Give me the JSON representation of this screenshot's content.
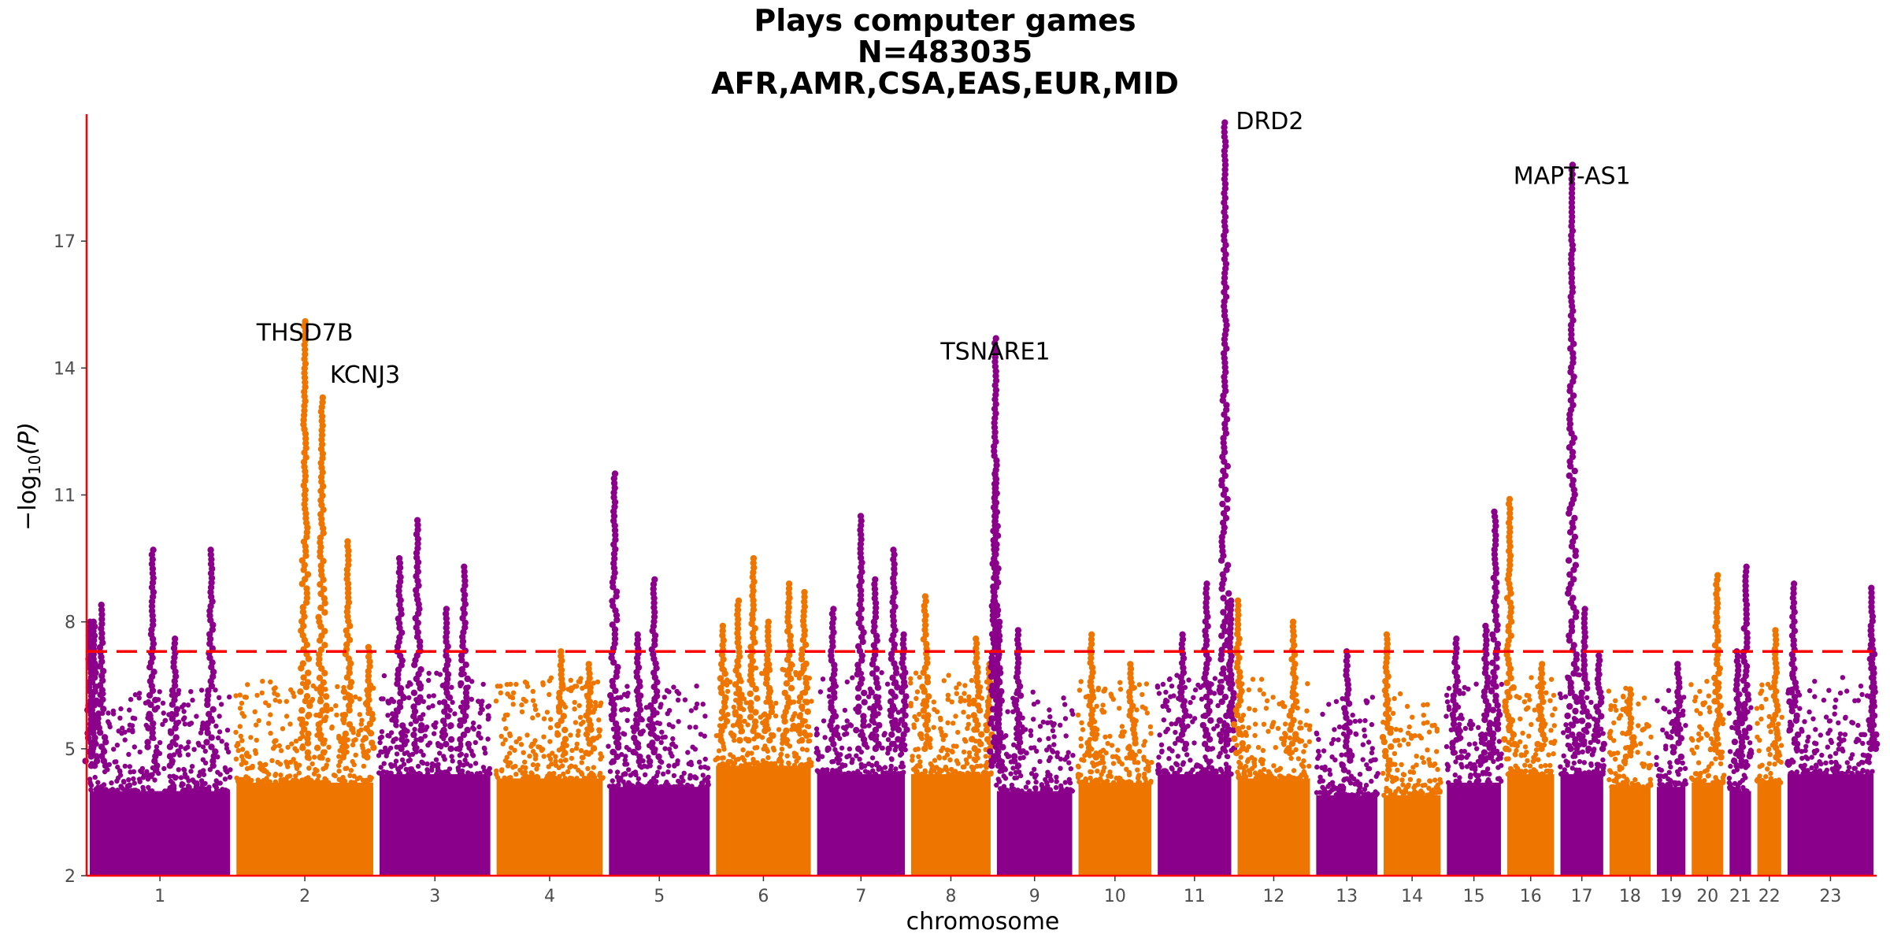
{
  "chart_data": {
    "type": "scatter",
    "title_lines": [
      "Plays computer games",
      "N=483035",
      "AFR,AMR,CSA,EAS,EUR,MID"
    ],
    "xlabel": "chromosome",
    "ylabel": "−log",
    "ylabel_sub": "10",
    "ylabel_var": "(P)",
    "ylim": [
      2,
      20
    ],
    "yticks": [
      2,
      5,
      8,
      11,
      14,
      17
    ],
    "significance_threshold": 7.3,
    "colors": {
      "odd": "#8B008B",
      "even": "#EE7600",
      "threshold": "#FF0000",
      "axis": "#FF0000"
    },
    "chromosomes": [
      {
        "label": "1",
        "length": 248,
        "base": 4.6,
        "peaks": [
          [
            0.02,
            8.0
          ],
          [
            0.05,
            8.0
          ],
          [
            0.1,
            8.4
          ],
          [
            0.45,
            9.7
          ],
          [
            0.6,
            7.6
          ],
          [
            0.85,
            9.7
          ]
        ]
      },
      {
        "label": "2",
        "length": 242,
        "base": 4.8,
        "peaks": [
          [
            0.5,
            15.1
          ],
          [
            0.62,
            13.3
          ],
          [
            0.8,
            9.9
          ],
          [
            0.95,
            7.4
          ]
        ]
      },
      {
        "label": "3",
        "length": 198,
        "base": 5.0,
        "peaks": [
          [
            0.2,
            9.5
          ],
          [
            0.35,
            10.4
          ],
          [
            0.6,
            8.3
          ],
          [
            0.75,
            9.3
          ]
        ]
      },
      {
        "label": "4",
        "length": 190,
        "base": 4.9,
        "peaks": [
          [
            0.6,
            7.3
          ],
          [
            0.85,
            7.0
          ]
        ]
      },
      {
        "label": "5",
        "length": 181,
        "base": 4.7,
        "peaks": [
          [
            0.08,
            11.5
          ],
          [
            0.45,
            9.0
          ],
          [
            0.3,
            7.7
          ]
        ]
      },
      {
        "label": "6",
        "length": 171,
        "base": 5.2,
        "peaks": [
          [
            0.1,
            7.9
          ],
          [
            0.25,
            8.5
          ],
          [
            0.4,
            9.5
          ],
          [
            0.55,
            8.0
          ],
          [
            0.75,
            8.9
          ],
          [
            0.9,
            8.7
          ]
        ]
      },
      {
        "label": "7",
        "length": 159,
        "base": 5.0,
        "peaks": [
          [
            0.2,
            8.3
          ],
          [
            0.5,
            10.5
          ],
          [
            0.65,
            9.0
          ],
          [
            0.85,
            9.7
          ],
          [
            0.95,
            7.7
          ]
        ]
      },
      {
        "label": "8",
        "length": 145,
        "base": 5.0,
        "peaks": [
          [
            0.2,
            8.6
          ],
          [
            0.8,
            7.6
          ],
          [
            0.95,
            7.0
          ]
        ]
      },
      {
        "label": "9",
        "length": 138,
        "base": 4.6,
        "peaks": [
          [
            0.02,
            14.7
          ],
          [
            0.02,
            11.5
          ],
          [
            0.06,
            8.0
          ],
          [
            0.3,
            7.8
          ]
        ]
      },
      {
        "label": "10",
        "length": 134,
        "base": 4.8,
        "peaks": [
          [
            0.2,
            7.7
          ],
          [
            0.7,
            7.0
          ]
        ]
      },
      {
        "label": "11",
        "length": 135,
        "base": 5.0,
        "peaks": [
          [
            0.35,
            7.7
          ],
          [
            0.65,
            8.9
          ],
          [
            0.88,
            19.8
          ],
          [
            0.95,
            8.5
          ]
        ]
      },
      {
        "label": "12",
        "length": 133,
        "base": 4.9,
        "peaks": [
          [
            0.05,
            8.5
          ],
          [
            0.75,
            8.0
          ]
        ]
      },
      {
        "label": "13",
        "length": 114,
        "base": 4.5,
        "peaks": [
          [
            0.5,
            7.3
          ]
        ]
      },
      {
        "label": "14",
        "length": 107,
        "base": 4.5,
        "peaks": [
          [
            0.1,
            7.7
          ]
        ]
      },
      {
        "label": "15",
        "length": 102,
        "base": 4.8,
        "peaks": [
          [
            0.2,
            7.6
          ],
          [
            0.7,
            7.9
          ],
          [
            0.85,
            10.6
          ]
        ]
      },
      {
        "label": "16",
        "length": 90,
        "base": 5.0,
        "peaks": [
          [
            0.1,
            10.9
          ],
          [
            0.7,
            7.0
          ]
        ]
      },
      {
        "label": "17",
        "length": 83,
        "base": 5.0,
        "peaks": [
          [
            0.3,
            18.8
          ],
          [
            0.55,
            8.3
          ],
          [
            0.85,
            7.2
          ]
        ]
      },
      {
        "label": "18",
        "length": 80,
        "base": 4.7,
        "peaks": [
          [
            0.5,
            6.4
          ]
        ]
      },
      {
        "label": "19",
        "length": 59,
        "base": 4.7,
        "peaks": [
          [
            0.7,
            7.0
          ]
        ]
      },
      {
        "label": "20",
        "length": 64,
        "base": 4.8,
        "peaks": [
          [
            0.75,
            9.1
          ]
        ]
      },
      {
        "label": "21",
        "length": 47,
        "base": 4.6,
        "peaks": [
          [
            0.4,
            7.3
          ],
          [
            0.7,
            9.3
          ]
        ]
      },
      {
        "label": "22",
        "length": 51,
        "base": 4.8,
        "peaks": [
          [
            0.7,
            7.8
          ]
        ]
      },
      {
        "label": "23",
        "length": 156,
        "base": 5.0,
        "peaks": [
          [
            0.1,
            8.9
          ],
          [
            0.95,
            8.8
          ],
          [
            0.95,
            7.8
          ]
        ]
      }
    ],
    "gene_annotations": [
      {
        "label": "THSD7B",
        "chrom": "2",
        "pos": 0.5,
        "y": 15.1,
        "anchor": "middle",
        "dx": 0,
        "dy": -0.45
      },
      {
        "label": "KCNJ3",
        "chrom": "2",
        "pos": 0.62,
        "y": 13.3,
        "anchor": "start",
        "dx": 10,
        "dy": 0.35
      },
      {
        "label": "TSNARE1",
        "chrom": "9",
        "pos": 0.02,
        "y": 14.7,
        "anchor": "middle",
        "dx": 0,
        "dy": -0.5
      },
      {
        "label": "DRD2",
        "chrom": "11",
        "pos": 0.88,
        "y": 19.8,
        "anchor": "start",
        "dx": 14,
        "dy": -0.15
      },
      {
        "label": "MAPT-AS1",
        "chrom": "17",
        "pos": 0.3,
        "y": 18.8,
        "anchor": "middle",
        "dx": 0,
        "dy": -0.45
      }
    ]
  }
}
